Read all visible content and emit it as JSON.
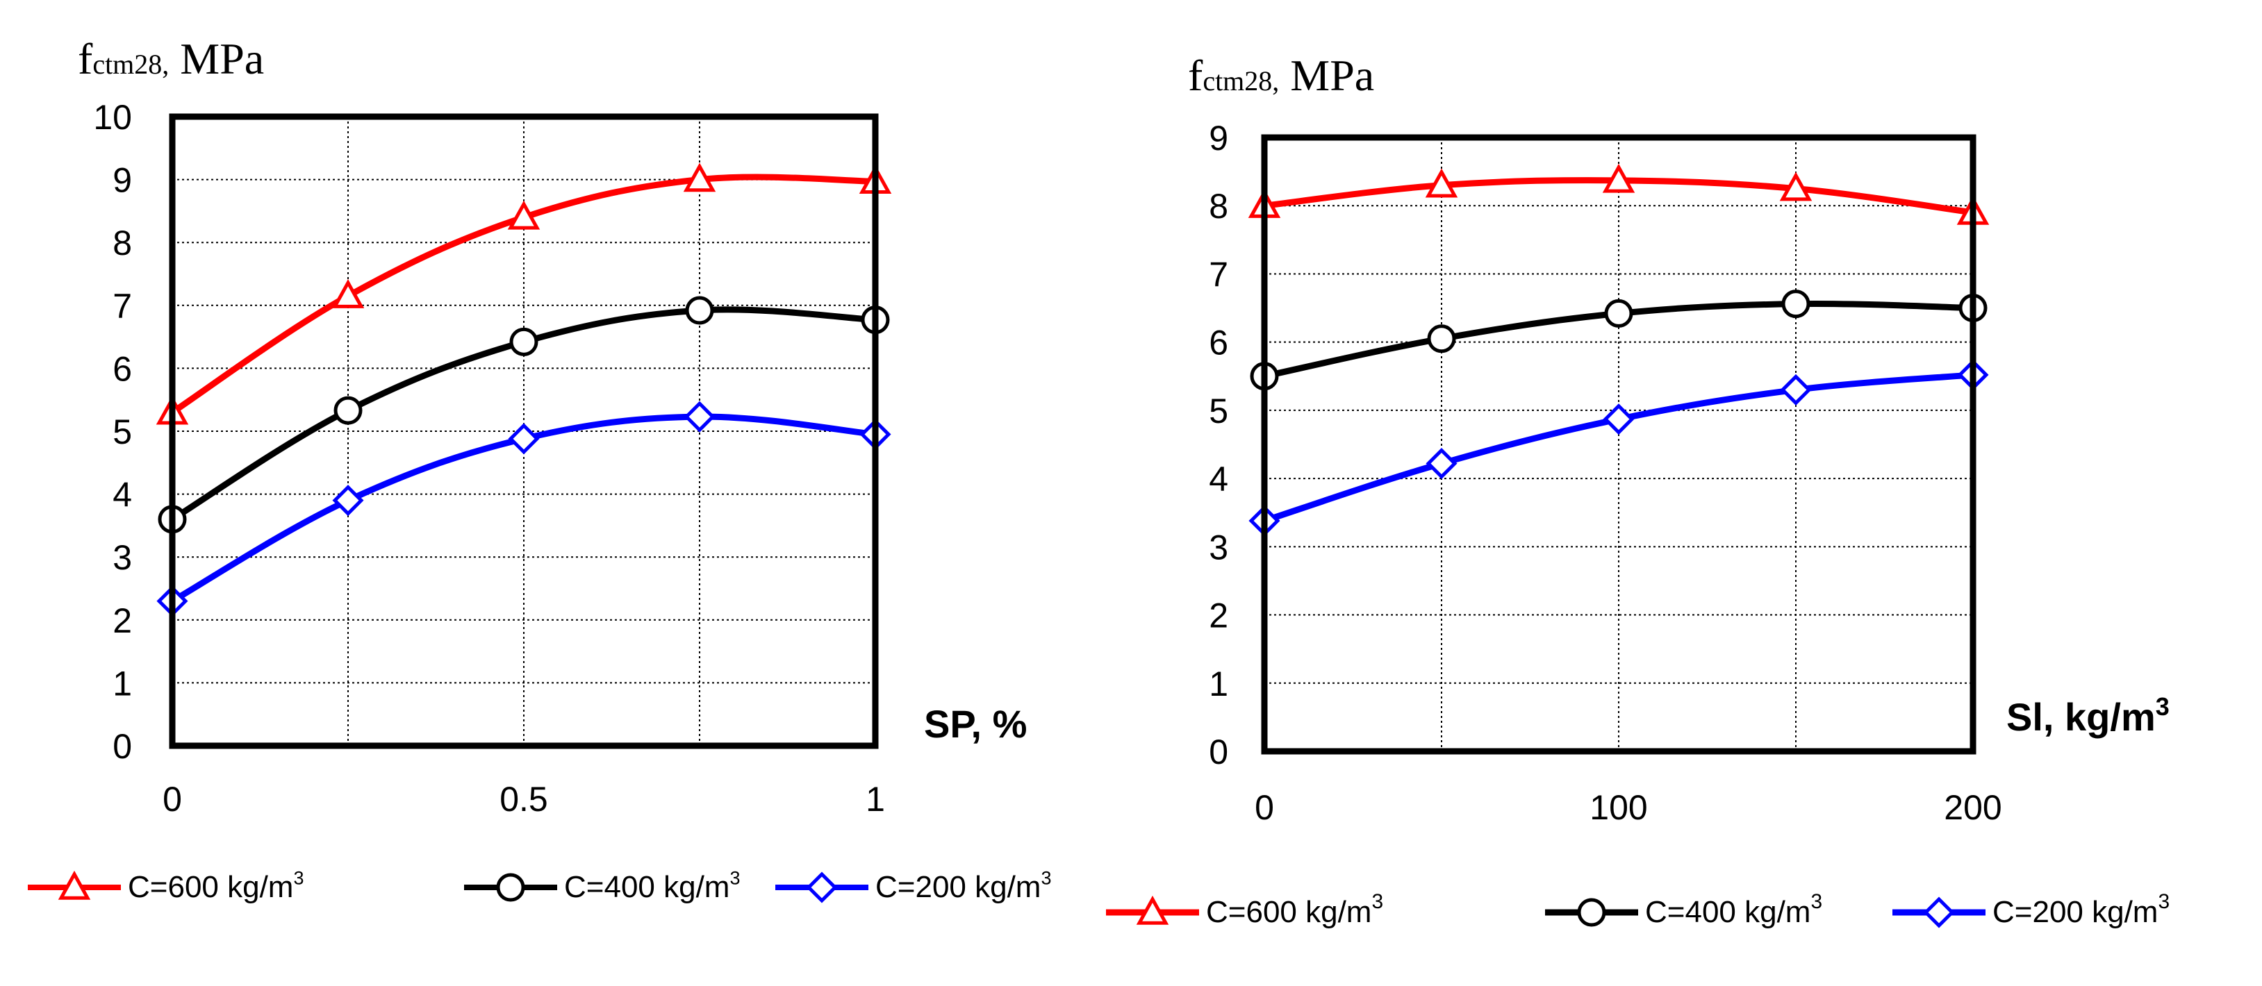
{
  "chart_data": [
    {
      "type": "line",
      "ylabel_main": "f",
      "ylabel_sub": "ctm28,",
      "ylabel_unit": " MPa",
      "xlabel": "SP, %",
      "x": [
        0,
        0.25,
        0.5,
        0.75,
        1
      ],
      "x_ticks": [
        0,
        0.5,
        1
      ],
      "x_tick_labels": [
        "0",
        "0.5",
        "1"
      ],
      "xlim": [
        0,
        1
      ],
      "ylim": [
        0,
        10
      ],
      "y_ticks": [
        0,
        1,
        2,
        3,
        4,
        5,
        6,
        7,
        8,
        9,
        10
      ],
      "grid": true,
      "legend_position": "bottom",
      "series": [
        {
          "name": "C=600 kg/m",
          "unit_sup": "3",
          "color": "#ff0000",
          "marker": "triangle",
          "values": [
            5.3,
            7.15,
            8.4,
            9.0,
            8.97
          ]
        },
        {
          "name": "C=400 kg/m",
          "unit_sup": "3",
          "color": "#000000",
          "marker": "circle",
          "values": [
            3.6,
            5.33,
            6.42,
            6.92,
            6.77
          ]
        },
        {
          "name": "C=200 kg/m",
          "unit_sup": "3",
          "color": "#0000ff",
          "marker": "diamond",
          "values": [
            2.3,
            3.9,
            4.88,
            5.23,
            4.95
          ]
        }
      ]
    },
    {
      "type": "line",
      "ylabel_main": "f",
      "ylabel_sub": "ctm28,",
      "ylabel_unit": " MPa",
      "xlabel": "Sl, kg/m",
      "xlabel_sup": "3",
      "x": [
        0,
        50,
        100,
        150,
        200
      ],
      "x_ticks": [
        0,
        100,
        200
      ],
      "x_tick_labels": [
        "0",
        "100",
        "200"
      ],
      "xlim": [
        0,
        200
      ],
      "ylim": [
        0,
        9
      ],
      "y_ticks": [
        0,
        1,
        2,
        3,
        4,
        5,
        6,
        7,
        8,
        9
      ],
      "grid": true,
      "legend_position": "bottom",
      "series": [
        {
          "name": "C=600 kg/m",
          "unit_sup": "3",
          "color": "#ff0000",
          "marker": "triangle",
          "values": [
            8.0,
            8.3,
            8.37,
            8.25,
            7.9
          ]
        },
        {
          "name": "C=400 kg/m",
          "unit_sup": "3",
          "color": "#000000",
          "marker": "circle",
          "values": [
            5.5,
            6.05,
            6.42,
            6.56,
            6.5
          ]
        },
        {
          "name": "C=200 kg/m",
          "unit_sup": "3",
          "color": "#0000ff",
          "marker": "diamond",
          "values": [
            3.38,
            4.22,
            4.87,
            5.3,
            5.52
          ]
        }
      ]
    }
  ]
}
